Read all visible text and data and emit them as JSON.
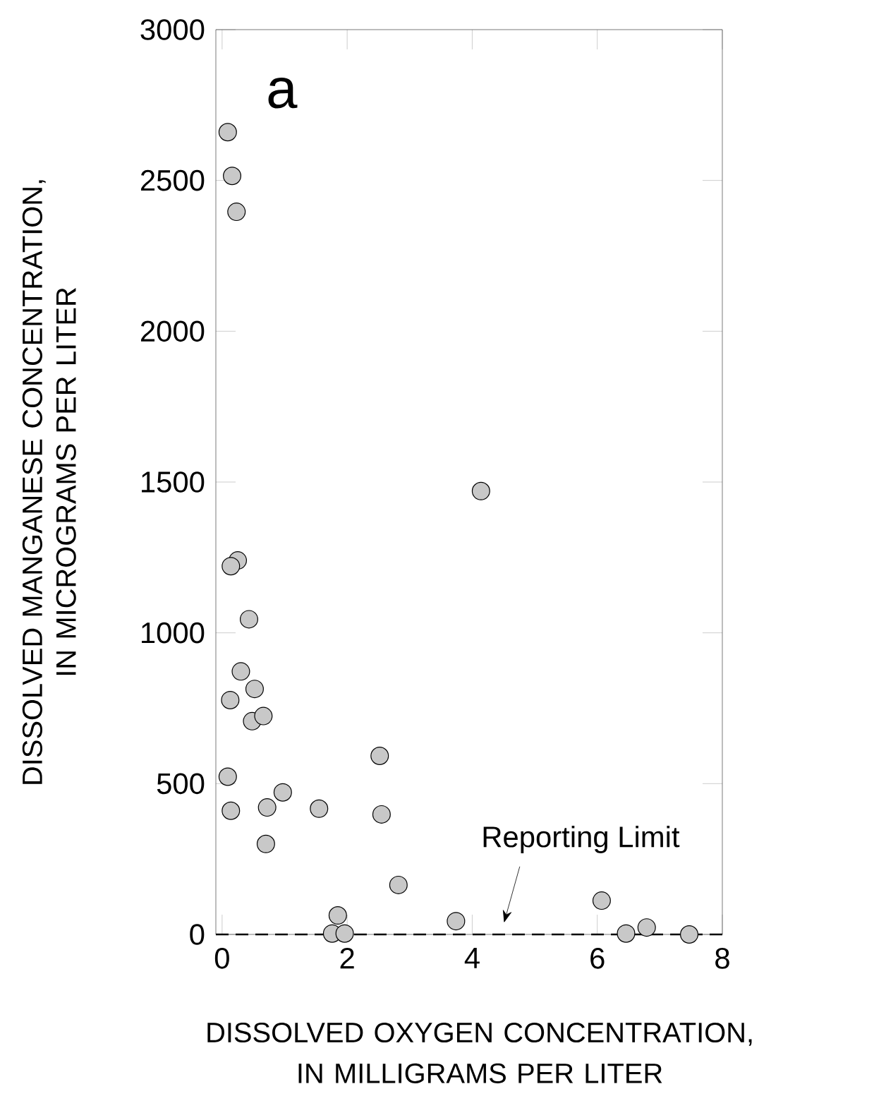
{
  "chart_data": {
    "type": "scatter",
    "xlabel": "DISSOLVED OXYGEN CONCENTRATION, IN MILLIGRAMS PER LITER",
    "ylabel": "DISSOLVED MANGANESE CONCENTRATION, IN MICROGRAMS PER LITER",
    "annotations": [
      "a"
    ],
    "x": [
      0.09,
      0.16,
      0.23,
      4.14,
      0.25,
      0.14,
      0.43,
      0.3,
      0.52,
      0.13,
      0.48,
      0.66,
      2.52,
      0.09,
      0.97,
      0.14,
      0.72,
      1.55,
      2.55,
      0.7,
      2.82,
      1.85,
      1.76,
      1.96,
      3.74,
      6.07,
      6.46,
      6.79,
      7.47
    ],
    "values": [
      2660,
      2515,
      2396,
      1470,
      1240,
      1221,
      1045,
      872,
      814,
      777,
      707,
      724,
      592,
      523,
      471,
      410,
      421,
      417,
      398,
      300,
      164,
      63,
      3,
      3,
      44,
      112,
      3,
      23,
      0
    ],
    "color": "#c8c8c8",
    "marker": "circle",
    "xlim": [
      -0.1,
      8
    ],
    "ylim": [
      0,
      3000
    ],
    "xticks": [
      0,
      2,
      4,
      6,
      8
    ],
    "yticks": [
      0,
      500,
      1000,
      1500,
      2000,
      2500,
      3000
    ],
    "ref_lines": [
      {
        "axis": "y",
        "value": 0,
        "label": "Reporting Limit",
        "line_style": "dashed"
      }
    ]
  }
}
